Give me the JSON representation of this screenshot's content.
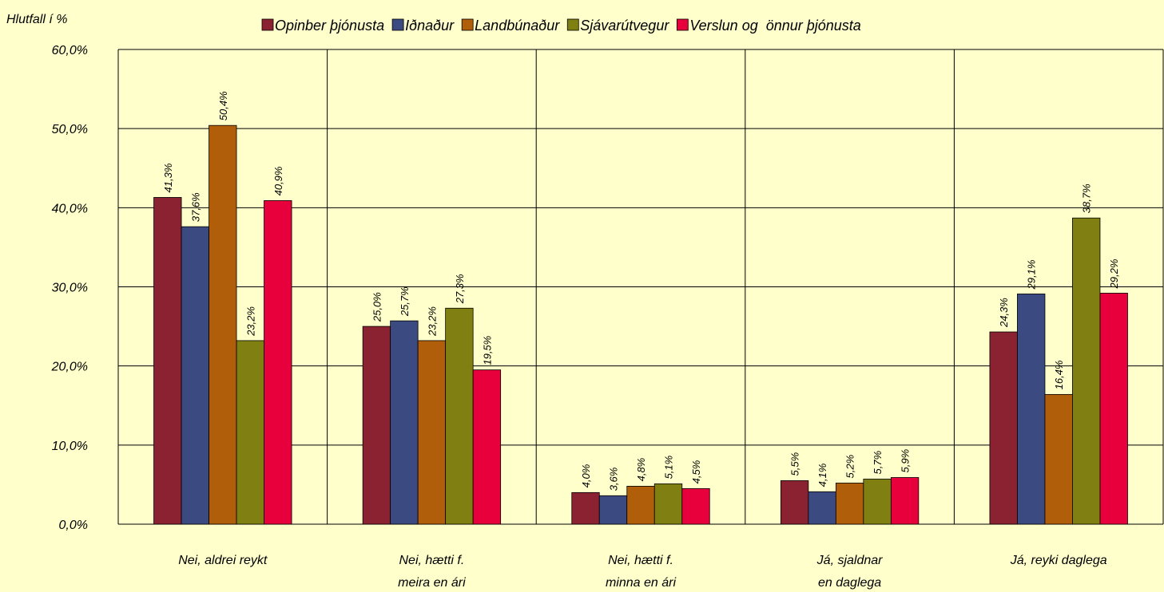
{
  "chart_data": {
    "type": "bar",
    "y_axis_label": "Hlutfall í %",
    "categories": [
      "Nei, aldrei reykt",
      "Nei, hætti f.\nmeira en ári",
      "Nei, hætti f.\nminna en ári",
      "Já, sjaldnar\nen daglega",
      "Já, reyki daglega"
    ],
    "series": [
      {
        "name": "Opinber þjónusta",
        "color": "#8b2232",
        "values": [
          41.3,
          25.0,
          4.0,
          5.5,
          24.3
        ],
        "value_labels": [
          "41,3%",
          "25,0%",
          "4,0%",
          "5,5%",
          "24,3%"
        ]
      },
      {
        "name": "Iðnaður",
        "color": "#3c4a82",
        "values": [
          37.6,
          25.7,
          3.6,
          4.1,
          29.1
        ],
        "value_labels": [
          "37,6%",
          "25,7%",
          "3,6%",
          "4,1%",
          "29,1%"
        ]
      },
      {
        "name": "Landbúnaður",
        "color": "#b05e0a",
        "values": [
          50.4,
          23.2,
          4.8,
          5.2,
          16.4
        ],
        "value_labels": [
          "50,4%",
          "23,2%",
          "4,8%",
          "5,2%",
          "16,4%"
        ]
      },
      {
        "name": "Sjávarútvegur",
        "color": "#808012",
        "values": [
          23.2,
          27.3,
          5.1,
          5.7,
          38.7
        ],
        "value_labels": [
          "23,2%",
          "27,3%",
          "5,1%",
          "5,7%",
          "38,7%"
        ]
      },
      {
        "name": "Verslun og  önnur þjónusta",
        "color": "#e8003c",
        "values": [
          40.9,
          19.5,
          4.5,
          5.9,
          29.2
        ],
        "value_labels": [
          "40,9%",
          "19,5%",
          "4,5%",
          "5,9%",
          "29,2%"
        ]
      }
    ],
    "ylim": [
      0,
      60
    ],
    "yticks": [
      {
        "value": 0,
        "label": "0,0%"
      },
      {
        "value": 10,
        "label": "10,0%"
      },
      {
        "value": 20,
        "label": "20,0%"
      },
      {
        "value": 30,
        "label": "30,0%"
      },
      {
        "value": 40,
        "label": "40,0%"
      },
      {
        "value": 50,
        "label": "50,0%"
      },
      {
        "value": 60,
        "label": "60,0%"
      }
    ],
    "grid": true
  }
}
